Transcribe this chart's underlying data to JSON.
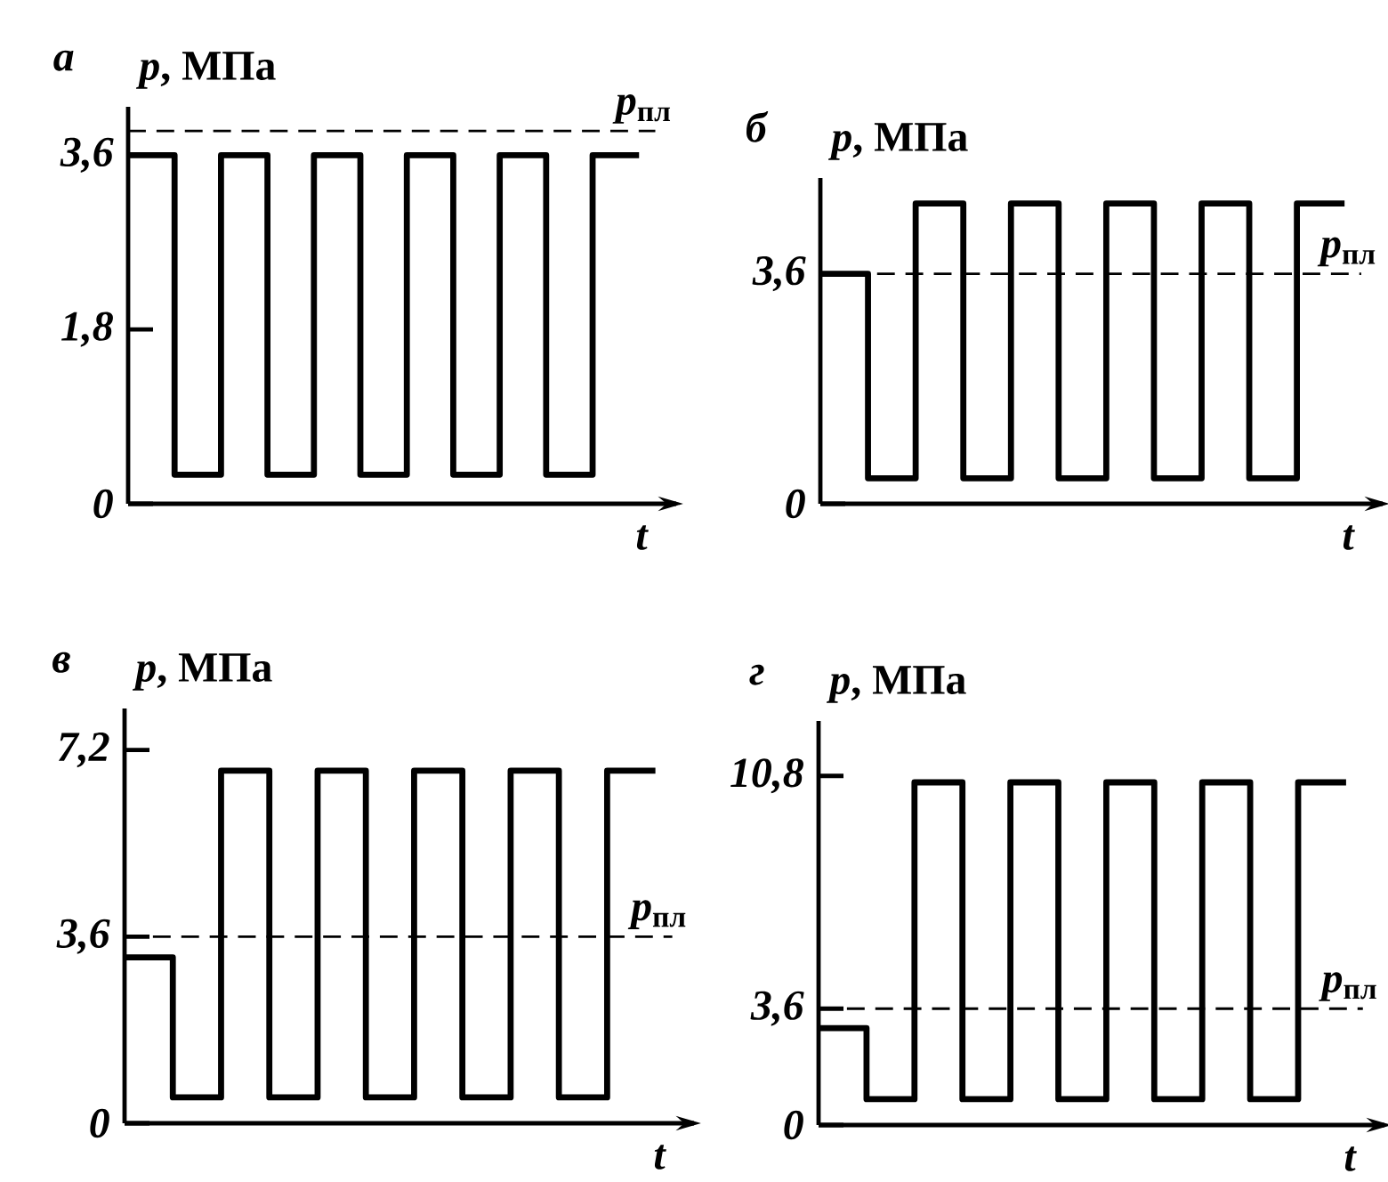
{
  "chart_data": [
    {
      "type": "step",
      "title": "а",
      "xlabel": "t",
      "ylabel": "*p*, МПа",
      "color": "#000000",
      "categories": [
        null,
        null,
        null,
        null,
        null,
        null,
        null,
        null,
        null,
        null,
        null,
        null
      ],
      "values": [
        3.6,
        0.3,
        3.6,
        0.3,
        3.6,
        0.3,
        3.6,
        0.3,
        3.6,
        0.3,
        3.6,
        3.6
      ],
      "ylim": [
        0,
        4.1
      ],
      "yticks": [
        0,
        {
          "value": 1.8,
          "label": "1,8"
        },
        {
          "value": 3.6,
          "label": "3,6"
        }
      ],
      "ref_lines": [
        {
          "axis": "y",
          "value": 3.85,
          "label": "*p*$_{пл}$",
          "line_style": "dashed"
        }
      ]
    },
    {
      "type": "step",
      "title": "б",
      "xlabel": "t",
      "ylabel": "*p*, МПа",
      "color": "#000000",
      "categories": [
        null,
        null,
        null,
        null,
        null,
        null,
        null,
        null,
        null,
        null,
        null,
        null
      ],
      "values": [
        3.6,
        0.4,
        4.7,
        0.4,
        4.7,
        0.4,
        4.7,
        0.4,
        4.7,
        0.4,
        4.7,
        4.7
      ],
      "ylim": [
        0,
        5.1
      ],
      "yticks": [
        0,
        {
          "value": 3.6,
          "label": "3,6"
        }
      ],
      "ref_lines": [
        {
          "axis": "y",
          "value": 3.6,
          "label": "*p*$_{пл}$",
          "line_style": "dashed"
        }
      ]
    },
    {
      "type": "step",
      "title": "в",
      "xlabel": "t",
      "ylabel": "*p*, МПа",
      "color": "#000000",
      "categories": [
        null,
        null,
        null,
        null,
        null,
        null,
        null,
        null,
        null,
        null,
        null,
        null
      ],
      "values": [
        3.2,
        0.5,
        6.8,
        0.5,
        6.8,
        0.5,
        6.8,
        0.5,
        6.8,
        0.5,
        6.8,
        6.8
      ],
      "ylim": [
        0,
        8
      ],
      "yticks": [
        0,
        {
          "value": 3.6,
          "label": "3,6"
        },
        {
          "value": 7.2,
          "label": "7,2"
        }
      ],
      "ref_lines": [
        {
          "axis": "y",
          "value": 3.6,
          "label": "*p*$_{пл}$",
          "line_style": "dashed"
        }
      ]
    },
    {
      "type": "step",
      "title": "г",
      "xlabel": "t",
      "ylabel": "*p*, МПа",
      "color": "#000000",
      "categories": [
        null,
        null,
        null,
        null,
        null,
        null,
        null,
        null,
        null,
        null,
        null,
        null
      ],
      "values": [
        3.0,
        0.8,
        10.6,
        0.8,
        10.6,
        0.8,
        10.6,
        0.8,
        10.6,
        0.8,
        10.6,
        10.6
      ],
      "ylim": [
        0,
        12.5
      ],
      "yticks": [
        0,
        {
          "value": 3.6,
          "label": "3,6"
        },
        {
          "value": 10.8,
          "label": "10,8"
        }
      ],
      "ref_lines": [
        {
          "axis": "y",
          "value": 3.6,
          "label": "*p*$_{пл}$",
          "line_style": "dashed"
        }
      ]
    }
  ]
}
